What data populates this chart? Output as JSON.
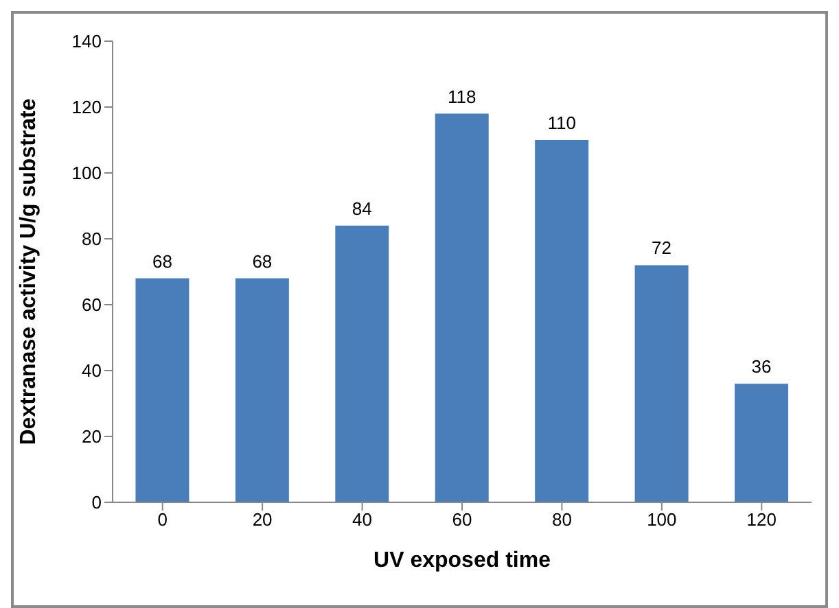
{
  "chart_data": {
    "type": "bar",
    "xlabel": "UV exposed time",
    "ylabel": "Dextranase activity U/g substrate",
    "categories": [
      "0",
      "20",
      "40",
      "60",
      "80",
      "100",
      "120"
    ],
    "values": [
      68,
      68,
      84,
      118,
      110,
      72,
      36
    ],
    "color": "#4a7ebb",
    "ylim": [
      0,
      140
    ],
    "yticks": [
      0,
      20,
      40,
      60,
      80,
      100,
      120,
      140
    ],
    "grid": false,
    "legend": false,
    "data_labels": true
  }
}
